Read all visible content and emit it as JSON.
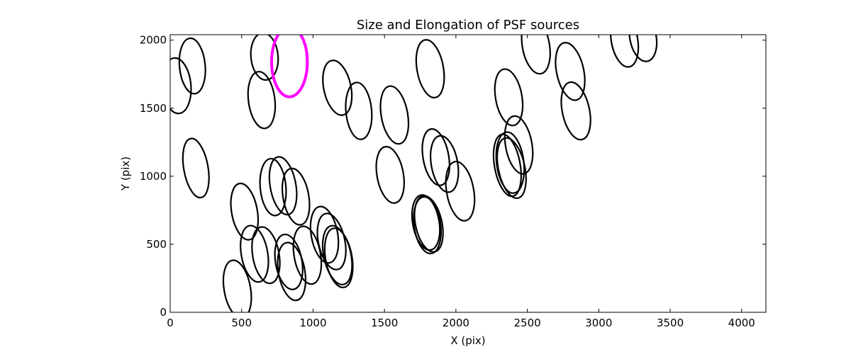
{
  "chart_data": {
    "type": "scatter",
    "title": "Size and Elongation of PSF sources",
    "xlabel": "X (pix)",
    "ylabel": "Y (pix)",
    "xlim": [
      0,
      4170
    ],
    "ylim": [
      0,
      2040
    ],
    "xticks": [
      0,
      500,
      1000,
      1500,
      2000,
      2500,
      3000,
      3500,
      4000
    ],
    "yticks": [
      0,
      500,
      1000,
      1500,
      2000
    ],
    "grid": false,
    "colors": {
      "normal": "#000000",
      "highlight": "#ff00ff"
    },
    "series": [
      {
        "marker": "ellipse",
        "color": "#000000",
        "points": [
          {
            "x": 45,
            "y": 1665,
            "w": 390,
            "h": 200,
            "angle": 95
          },
          {
            "x": 155,
            "y": 1810,
            "w": 390,
            "h": 180,
            "angle": 95
          },
          {
            "x": 180,
            "y": 1060,
            "w": 420,
            "h": 170,
            "angle": 100
          },
          {
            "x": 660,
            "y": 1880,
            "w": 330,
            "h": 190,
            "angle": 95
          },
          {
            "x": 640,
            "y": 1560,
            "w": 400,
            "h": 185,
            "angle": 97
          },
          {
            "x": 1170,
            "y": 1650,
            "w": 390,
            "h": 190,
            "angle": 102
          },
          {
            "x": 1320,
            "y": 1480,
            "w": 400,
            "h": 180,
            "angle": 95
          },
          {
            "x": 1570,
            "y": 1450,
            "w": 410,
            "h": 185,
            "angle": 100
          },
          {
            "x": 1820,
            "y": 1790,
            "w": 410,
            "h": 185,
            "angle": 100
          },
          {
            "x": 2370,
            "y": 1580,
            "w": 400,
            "h": 185,
            "angle": 100
          },
          {
            "x": 2560,
            "y": 1960,
            "w": 400,
            "h": 190,
            "angle": 100
          },
          {
            "x": 2800,
            "y": 1770,
            "w": 410,
            "h": 190,
            "angle": 102
          },
          {
            "x": 2840,
            "y": 1480,
            "w": 410,
            "h": 190,
            "angle": 102
          },
          {
            "x": 3180,
            "y": 2000,
            "w": 380,
            "h": 185,
            "angle": 100
          },
          {
            "x": 3310,
            "y": 2020,
            "w": 340,
            "h": 185,
            "angle": 100
          },
          {
            "x": 2440,
            "y": 1230,
            "w": 410,
            "h": 185,
            "angle": 100
          },
          {
            "x": 2380,
            "y": 1100,
            "w": 430,
            "h": 190,
            "angle": 97
          },
          {
            "x": 2360,
            "y": 1080,
            "w": 440,
            "h": 180,
            "angle": 100
          },
          {
            "x": 2390,
            "y": 1060,
            "w": 430,
            "h": 185,
            "angle": 102
          },
          {
            "x": 1540,
            "y": 1010,
            "w": 400,
            "h": 185,
            "angle": 100
          },
          {
            "x": 1860,
            "y": 1140,
            "w": 400,
            "h": 180,
            "angle": 100
          },
          {
            "x": 1920,
            "y": 1090,
            "w": 400,
            "h": 185,
            "angle": 100
          },
          {
            "x": 2030,
            "y": 890,
            "w": 420,
            "h": 190,
            "angle": 100
          },
          {
            "x": 1790,
            "y": 660,
            "w": 390,
            "h": 185,
            "angle": 100
          },
          {
            "x": 1810,
            "y": 650,
            "w": 400,
            "h": 185,
            "angle": 102
          },
          {
            "x": 1800,
            "y": 640,
            "w": 400,
            "h": 185,
            "angle": 98
          },
          {
            "x": 520,
            "y": 740,
            "w": 400,
            "h": 180,
            "angle": 100
          },
          {
            "x": 720,
            "y": 920,
            "w": 400,
            "h": 180,
            "angle": 95
          },
          {
            "x": 790,
            "y": 930,
            "w": 410,
            "h": 180,
            "angle": 100
          },
          {
            "x": 880,
            "y": 850,
            "w": 400,
            "h": 180,
            "angle": 100
          },
          {
            "x": 590,
            "y": 430,
            "w": 400,
            "h": 185,
            "angle": 100
          },
          {
            "x": 670,
            "y": 420,
            "w": 400,
            "h": 185,
            "angle": 100
          },
          {
            "x": 830,
            "y": 370,
            "w": 390,
            "h": 185,
            "angle": 100
          },
          {
            "x": 850,
            "y": 300,
            "w": 410,
            "h": 185,
            "angle": 100
          },
          {
            "x": 960,
            "y": 420,
            "w": 410,
            "h": 185,
            "angle": 100
          },
          {
            "x": 1080,
            "y": 570,
            "w": 400,
            "h": 185,
            "angle": 100
          },
          {
            "x": 1130,
            "y": 520,
            "w": 400,
            "h": 185,
            "angle": 102
          },
          {
            "x": 1170,
            "y": 420,
            "w": 420,
            "h": 190,
            "angle": 102
          },
          {
            "x": 1180,
            "y": 400,
            "w": 420,
            "h": 185,
            "angle": 100
          },
          {
            "x": 470,
            "y": 170,
            "w": 410,
            "h": 185,
            "angle": 100
          }
        ]
      },
      {
        "marker": "circle",
        "color": "#ff00ff",
        "points": [
          {
            "x": 835,
            "y": 1840,
            "w": 490,
            "h": 250,
            "angle": 90
          }
        ]
      }
    ]
  }
}
